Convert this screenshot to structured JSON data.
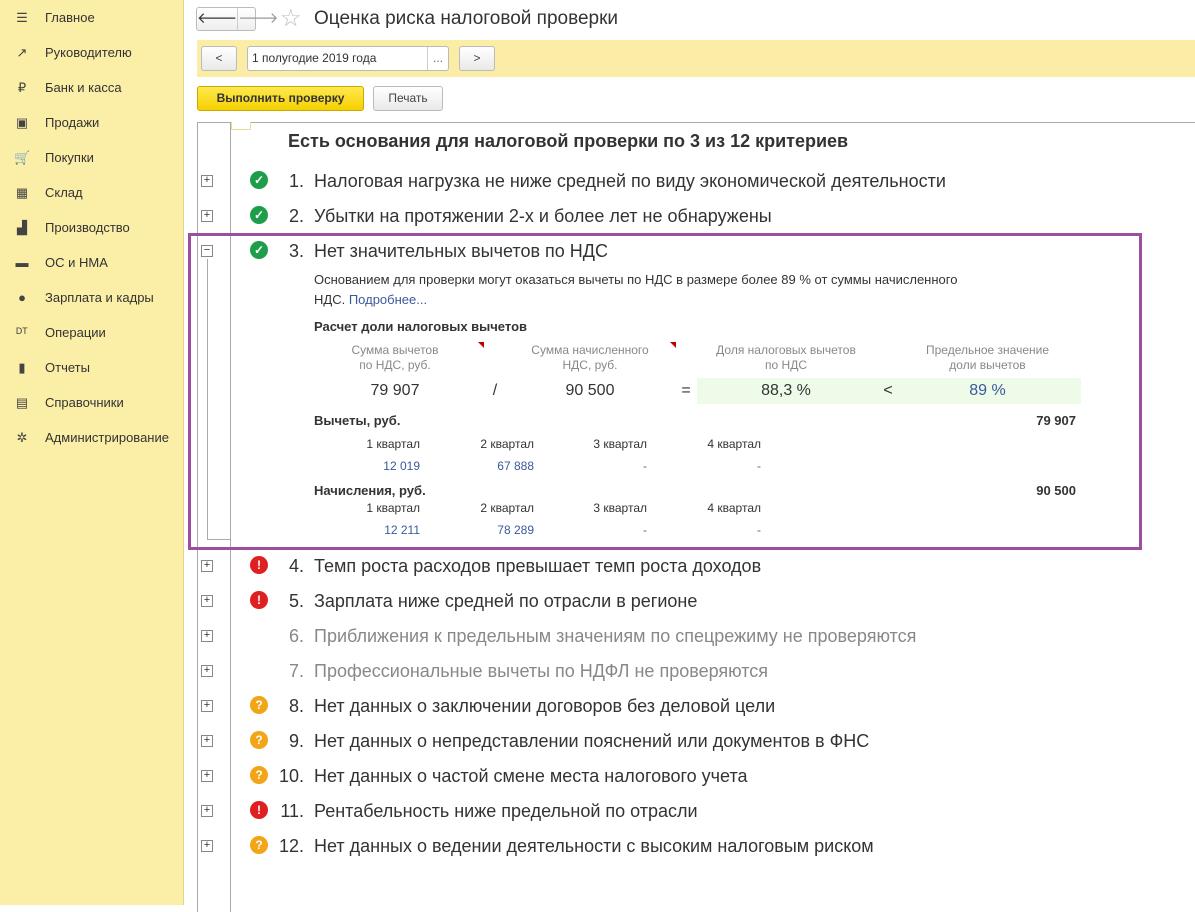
{
  "sidebar": {
    "items": [
      {
        "label": "Главное",
        "icon": "menu-icon"
      },
      {
        "label": "Руководителю",
        "icon": "trend-icon"
      },
      {
        "label": "Банк и касса",
        "icon": "ruble-icon"
      },
      {
        "label": "Продажи",
        "icon": "bag-icon"
      },
      {
        "label": "Покупки",
        "icon": "cart-icon"
      },
      {
        "label": "Склад",
        "icon": "warehouse-icon"
      },
      {
        "label": "Производство",
        "icon": "factory-icon"
      },
      {
        "label": "ОС и НМА",
        "icon": "truck-icon"
      },
      {
        "label": "Зарплата и кадры",
        "icon": "person-icon"
      },
      {
        "label": "Операции",
        "icon": "dt-kt-icon"
      },
      {
        "label": "Отчеты",
        "icon": "bar-chart-icon"
      },
      {
        "label": "Справочники",
        "icon": "books-icon"
      },
      {
        "label": "Администрирование",
        "icon": "gear-icon"
      }
    ]
  },
  "header": {
    "title": "Оценка риска налоговой проверки",
    "back": "🡐",
    "forward": "🡒"
  },
  "period": {
    "prev": "<",
    "value": "1 полугодие 2019 года",
    "choose": "...",
    "next": ">"
  },
  "toolbar": {
    "run": "Выполнить проверку",
    "print": "Печать"
  },
  "summary": "Есть основания для налоговой проверки по 3 из 12 критериев",
  "criteria": [
    {
      "num": "1.",
      "text": "Налоговая нагрузка не ниже средней по виду экономической деятельности",
      "status": "ok"
    },
    {
      "num": "2.",
      "text": "Убытки на протяжении 2-х и более лет не обнаружены",
      "status": "ok"
    },
    {
      "num": "3.",
      "text": "Нет значительных вычетов по НДС",
      "status": "ok",
      "expanded": true
    },
    {
      "num": "4.",
      "text": "Темп роста расходов превышает темп роста доходов",
      "status": "error"
    },
    {
      "num": "5.",
      "text": "Зарплата ниже средней по отрасли в регионе",
      "status": "error"
    },
    {
      "num": "6.",
      "text": "Приближения к предельным значениям по спецрежиму не проверяются",
      "status": "disabled"
    },
    {
      "num": "7.",
      "text": "Профессиональные вычеты по НДФЛ не проверяются",
      "status": "disabled"
    },
    {
      "num": "8.",
      "text": "Нет данных о заключении договоров без деловой цели",
      "status": "unknown"
    },
    {
      "num": "9.",
      "text": "Нет данных о непредставлении пояснений или документов в ФНС",
      "status": "unknown"
    },
    {
      "num": "10.",
      "text": "Нет данных о частой смене места налогового учета",
      "status": "unknown"
    },
    {
      "num": "11.",
      "text": "Рентабельность ниже предельной по отрасли",
      "status": "error"
    },
    {
      "num": "12.",
      "text": "Нет данных о ведении деятельности с высоким налоговым риском",
      "status": "unknown"
    }
  ],
  "detail": {
    "description": "Основанием для проверки могут оказаться вычеты по НДС в размере более 89 % от суммы начисленного НДС.",
    "more_link": "Подробнее...",
    "calc_title": "Расчет доли налоговых вычетов",
    "col1": "Сумма вычетов\nпо НДС, руб.",
    "col2": "Сумма начисленного\nНДС, руб.",
    "col3": "Доля налоговых вычетов\nпо НДС",
    "col4": "Предельное значение\nдоли вычетов",
    "deductions": "79 907",
    "div": "/",
    "accrued": "90 500",
    "eq": "=",
    "share": "88,3 %",
    "lt": "<",
    "limit": "89 %",
    "deductions_title": "Вычеты, руб.",
    "deductions_total": "79 907",
    "accruals_title": "Начисления, руб.",
    "accruals_total": "90 500",
    "quarters": [
      "1 квартал",
      "2 квартал",
      "3 квартал",
      "4 квартал"
    ],
    "deductions_q": [
      "12 019",
      "67 888",
      "-",
      "-"
    ],
    "accruals_q": [
      "12 211",
      "78 289",
      "-",
      "-"
    ]
  },
  "colors": {
    "sidebar": "#fbeea6",
    "ok": "#1e9e4a",
    "error": "#e02020",
    "unknown": "#f2a516",
    "highlight": "#9b4f9e"
  }
}
